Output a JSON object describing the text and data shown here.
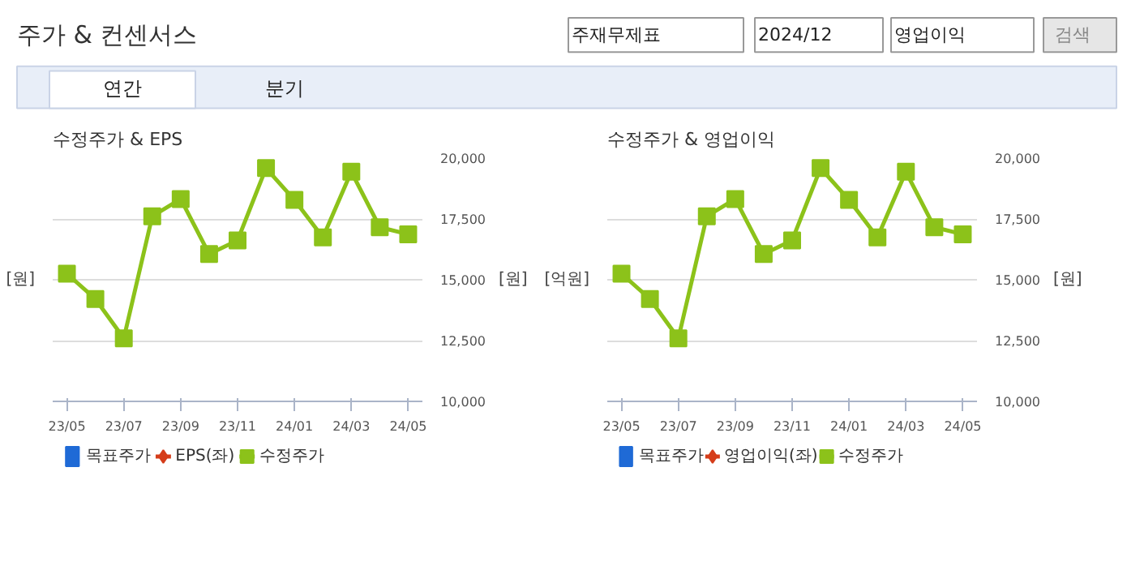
{
  "chart_data": [
    {
      "type": "other",
      "annotations": [
        "주가 & 컨센서스",
        "주재무제표",
        "2024/12",
        "영업이익",
        "검색",
        "연간",
        "분기"
      ]
    },
    {
      "type": "line",
      "title": "수정주가 & EPS",
      "ylabel": "[원]",
      "y2label": "[원]",
      "categories": [
        "23/05",
        null,
        "23/07",
        null,
        "23/09",
        null,
        "23/11",
        null,
        "24/01",
        null,
        "24/03",
        null,
        "24/05"
      ],
      "y2lim": [
        10000,
        20000
      ],
      "y2ticks": [
        {
          "value": 10000,
          "label": "10,000"
        },
        {
          "value": 12500,
          "label": "12,500"
        },
        {
          "value": 15000,
          "label": "15,000"
        },
        {
          "value": 17500,
          "label": "17,500"
        },
        {
          "value": 20000,
          "label": "20,000"
        }
      ],
      "grid": "y",
      "legend": "bottom",
      "series": [
        {
          "name": "목표주가",
          "type": "bar",
          "color": "#1f6ad6",
          "values": [
            null,
            null,
            null,
            null,
            null,
            null,
            null,
            null,
            null,
            null,
            null,
            null,
            null
          ]
        },
        {
          "name": "EPS(좌)",
          "color": "#d53d1a",
          "marker": "diamond",
          "values": [
            null,
            null,
            null,
            null,
            null,
            null,
            null,
            null,
            null,
            null,
            null,
            null,
            null
          ]
        },
        {
          "name": "수정주가",
          "color": "#8cc21a",
          "marker": "square",
          "axis": "y2",
          "values": [
            15250,
            14210,
            12590,
            17610,
            18320,
            16060,
            16620,
            19590,
            18280,
            16740,
            19440,
            17160,
            16870
          ]
        }
      ]
    },
    {
      "type": "line",
      "title": "수정주가 & 영업이익",
      "ylabel": "[억원]",
      "y2label": "[원]",
      "categories": [
        "23/05",
        null,
        "23/07",
        null,
        "23/09",
        null,
        "23/11",
        null,
        "24/01",
        null,
        "24/03",
        null,
        "24/05"
      ],
      "y2lim": [
        10000,
        20000
      ],
      "y2ticks": [
        {
          "value": 10000,
          "label": "10,000"
        },
        {
          "value": 12500,
          "label": "12,500"
        },
        {
          "value": 15000,
          "label": "15,000"
        },
        {
          "value": 17500,
          "label": "17,500"
        },
        {
          "value": 20000,
          "label": "20,000"
        }
      ],
      "grid": "y",
      "legend": "bottom",
      "series": [
        {
          "name": "목표주가",
          "type": "bar",
          "color": "#1f6ad6",
          "values": [
            null,
            null,
            null,
            null,
            null,
            null,
            null,
            null,
            null,
            null,
            null,
            null,
            null
          ]
        },
        {
          "name": "영업이익(좌)",
          "color": "#d53d1a",
          "marker": "diamond",
          "values": [
            null,
            null,
            null,
            null,
            null,
            null,
            null,
            null,
            null,
            null,
            null,
            null,
            null
          ]
        },
        {
          "name": "수정주가",
          "color": "#8cc21a",
          "marker": "square",
          "axis": "y2",
          "values": [
            15250,
            14210,
            12590,
            17610,
            18320,
            16060,
            16620,
            19590,
            18280,
            16740,
            19440,
            17160,
            16870
          ]
        }
      ]
    }
  ]
}
